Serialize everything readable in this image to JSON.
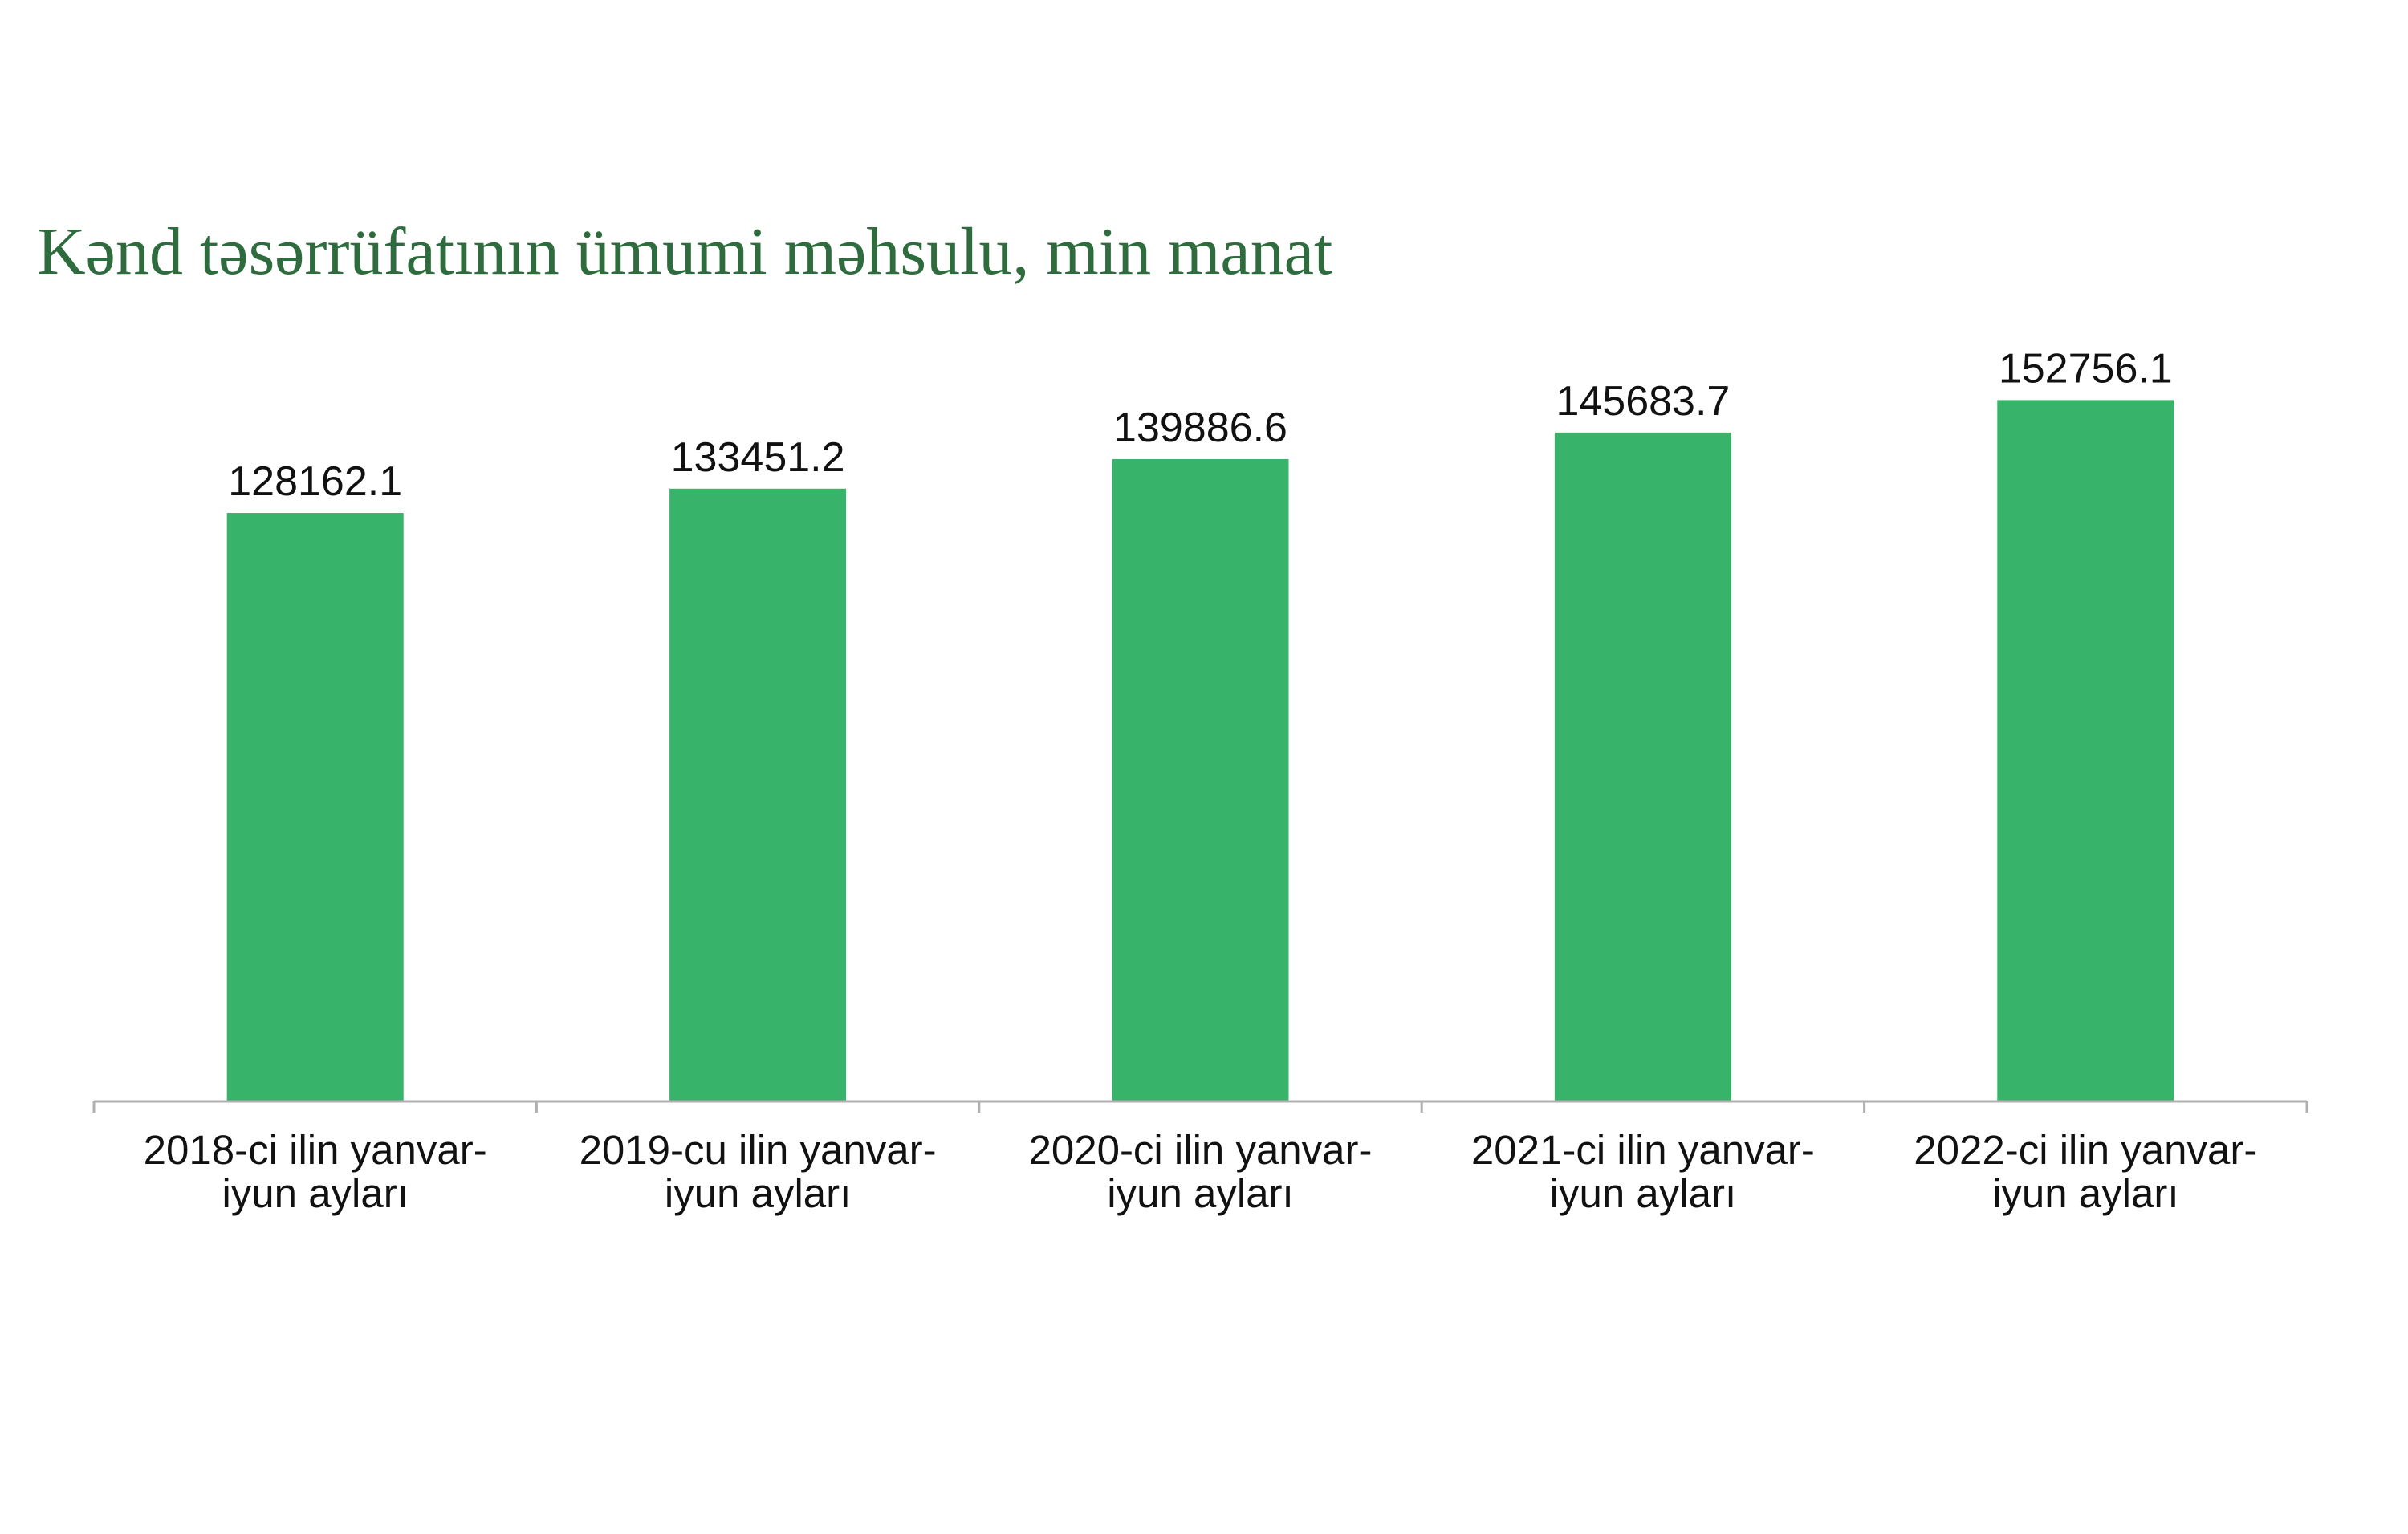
{
  "chart_data": {
    "type": "bar",
    "title": "Kənd təsərrüfatının ümumi məhsulu, min manat",
    "categories": [
      [
        "2018-ci ilin yanvar-",
        "iyun ayları"
      ],
      [
        "2019-cu ilin yanvar-",
        "iyun ayları"
      ],
      [
        "2020-ci ilin yanvar-",
        "iyun ayları"
      ],
      [
        "2021-ci ilin yanvar-",
        "iyun ayları"
      ],
      [
        "2022-ci ilin yanvar-",
        "iyun ayları"
      ]
    ],
    "values": [
      128162.1,
      133451.2,
      139886.6,
      145683.7,
      152756.1
    ],
    "data_labels": [
      "128162.1",
      "133451.2",
      "139886.6",
      "145683.7",
      "152756.1"
    ],
    "xlabel": "",
    "ylabel": "",
    "grid": false,
    "legend": "none",
    "bar_color": "#38b46a",
    "axis_color": "#b0b0b0",
    "title_color": "#2e6b3d"
  }
}
